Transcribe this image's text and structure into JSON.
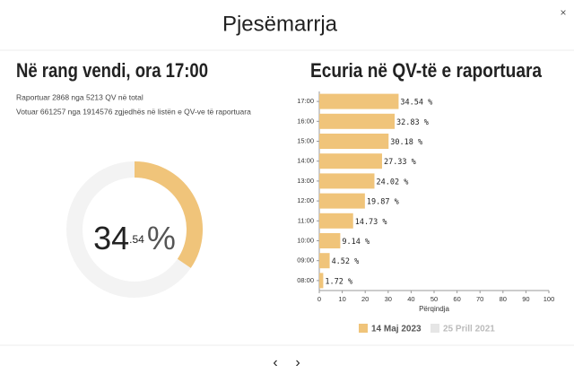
{
  "header": {
    "title": "Pjesëmarrja",
    "close": "×"
  },
  "summary": {
    "title": "Në rang vendi, ora 17:00",
    "lines": [
      "Raportuar 2868 nga 5213 QV në total",
      "Votuar 661257 nga 1914576 zgjedhës në listën e QV-ve të raportuara"
    ],
    "donut": {
      "value": 34.54,
      "max": 100,
      "color": "#f0c47a",
      "track_color": "#f3f3f3",
      "label": {
        "integer": "34",
        "decimal": ".54",
        "unit": "%"
      }
    }
  },
  "chart_data": {
    "type": "bar",
    "orientation": "horizontal",
    "title": "Ecuria në QV-të e raportuara",
    "categories": [
      "17:00",
      "16:00",
      "15:00",
      "14:00",
      "13:00",
      "12:00",
      "11:00",
      "10:00",
      "09:00",
      "08:00"
    ],
    "series": [
      {
        "name": "14 Maj 2023",
        "color": "#f0c47a",
        "values": [
          34.54,
          32.83,
          30.18,
          27.33,
          24.02,
          19.87,
          14.73,
          9.14,
          4.52,
          1.72
        ],
        "value_labels": [
          "34.54 %",
          "32.83 %",
          "30.18 %",
          "27.33 %",
          "24.02 %",
          "19.87 %",
          "14.73 %",
          "9.14 %",
          "4.52 %",
          "1.72 %"
        ]
      },
      {
        "name": "25 Prill 2021",
        "color": "#e6e6e6",
        "hidden": true,
        "values": [
          null,
          null,
          null,
          null,
          null,
          null,
          null,
          null,
          null,
          null
        ]
      }
    ],
    "xlim": [
      0,
      100
    ],
    "xticks": [
      0,
      10,
      20,
      30,
      40,
      50,
      60,
      70,
      80,
      90,
      100
    ],
    "xlabel": "Përqindja",
    "legend": "bottom",
    "grid": false
  },
  "nav": {
    "prev": "‹",
    "next": "›"
  }
}
